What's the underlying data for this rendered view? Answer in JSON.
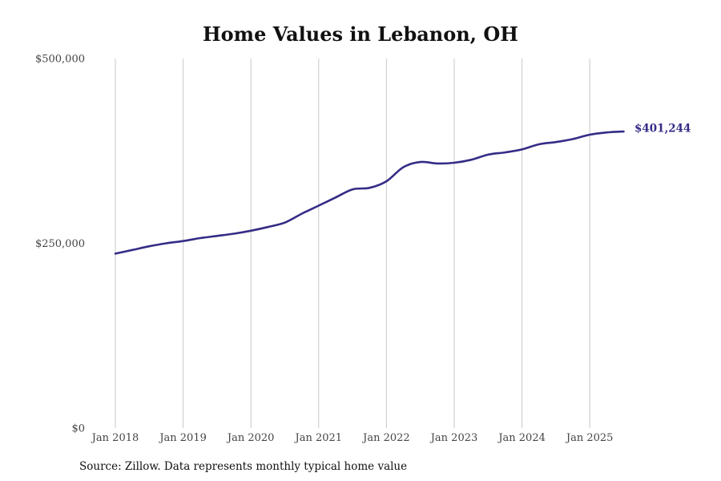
{
  "title": "Home Values in Lebanon, OH",
  "source_note": "Source: Zillow. Data represents monthly typical home value",
  "colors": {
    "line": "#352c86",
    "grid": "#c8c8c8",
    "text": "#444444"
  },
  "chart_data": {
    "type": "line",
    "title": "Home Values in Lebanon, OH",
    "xlabel": "",
    "ylabel": "",
    "ylim": [
      0,
      500000
    ],
    "xlim": [
      "2018-01",
      "2025-07"
    ],
    "grid": {
      "vertical": true,
      "horizontal": false
    },
    "legend": "none",
    "y_ticks": [
      {
        "value": 0,
        "label": "$0"
      },
      {
        "value": 250000,
        "label": "$250,000"
      },
      {
        "value": 500000,
        "label": "$500,000"
      }
    ],
    "x_ticks": [
      {
        "value": "2018-01",
        "label": "Jan 2018"
      },
      {
        "value": "2019-01",
        "label": "Jan 2019"
      },
      {
        "value": "2020-01",
        "label": "Jan 2020"
      },
      {
        "value": "2021-01",
        "label": "Jan 2021"
      },
      {
        "value": "2022-01",
        "label": "Jan 2022"
      },
      {
        "value": "2023-01",
        "label": "Jan 2023"
      },
      {
        "value": "2024-01",
        "label": "Jan 2024"
      },
      {
        "value": "2025-01",
        "label": "Jan 2025"
      }
    ],
    "end_label": "$401,244",
    "series": [
      {
        "x": [
          "2018-01",
          "2018-04",
          "2018-07",
          "2018-10",
          "2019-01",
          "2019-04",
          "2019-07",
          "2019-10",
          "2020-01",
          "2020-04",
          "2020-07",
          "2020-10",
          "2021-01",
          "2021-04",
          "2021-07",
          "2021-10",
          "2022-01",
          "2022-04",
          "2022-07",
          "2022-10",
          "2023-01",
          "2023-04",
          "2023-07",
          "2023-10",
          "2024-01",
          "2024-04",
          "2024-07",
          "2024-10",
          "2025-01",
          "2025-04",
          "2025-07"
        ],
        "y": [
          236000,
          241000,
          246000,
          250000,
          253000,
          257000,
          260000,
          263000,
          267000,
          272000,
          278000,
          290000,
          301000,
          312000,
          323000,
          325000,
          334000,
          353000,
          360000,
          358000,
          359000,
          363000,
          370000,
          373000,
          377000,
          384000,
          387000,
          391000,
          397000,
          400000,
          401244
        ]
      }
    ]
  }
}
